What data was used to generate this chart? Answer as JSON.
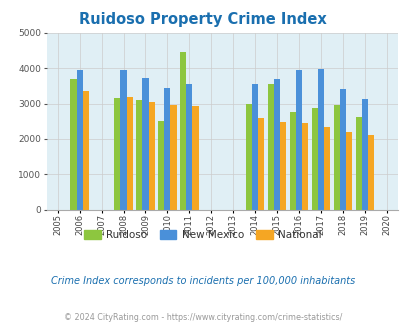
{
  "title": "Ruidoso Property Crime Index",
  "title_color": "#1a6faf",
  "background_color": "#e0eff5",
  "fig_background": "#ffffff",
  "years": [
    2005,
    2006,
    2007,
    2008,
    2009,
    2010,
    2011,
    2012,
    2013,
    2014,
    2015,
    2016,
    2017,
    2018,
    2019,
    2020
  ],
  "data_years": [
    2006,
    2008,
    2009,
    2010,
    2011,
    2014,
    2015,
    2016,
    2017,
    2018,
    2019
  ],
  "ruidoso": [
    3700,
    3150,
    3100,
    2500,
    4450,
    3000,
    3550,
    2750,
    2875,
    2950,
    2625
  ],
  "new_mexico": [
    3950,
    3950,
    3725,
    3450,
    3550,
    3550,
    3700,
    3950,
    3975,
    3400,
    3125
  ],
  "national": [
    3350,
    3200,
    3050,
    2950,
    2925,
    2600,
    2475,
    2450,
    2350,
    2200,
    2125
  ],
  "ruidoso_color": "#8dc63f",
  "new_mexico_color": "#4a90d9",
  "national_color": "#f5a623",
  "ylim": [
    0,
    5000
  ],
  "yticks": [
    0,
    1000,
    2000,
    3000,
    4000,
    5000
  ],
  "bar_width": 0.28,
  "grid_color": "#cccccc",
  "subtitle": "Crime Index corresponds to incidents per 100,000 inhabitants",
  "subtitle_color": "#1a6faf",
  "footer": "© 2024 CityRating.com - https://www.cityrating.com/crime-statistics/",
  "footer_color": "#999999"
}
